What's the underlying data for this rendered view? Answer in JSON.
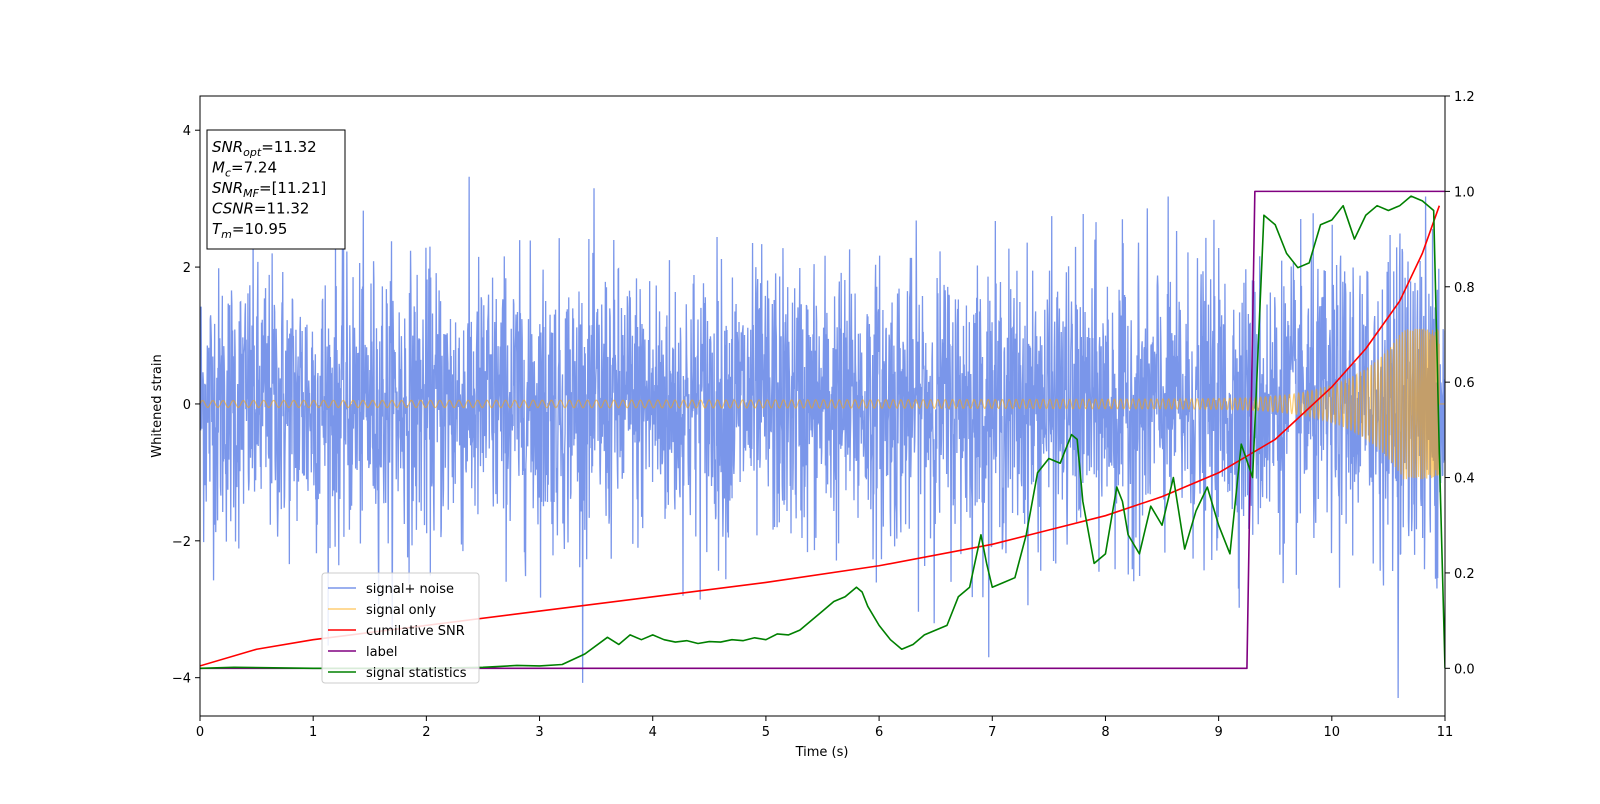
{
  "chart_data": {
    "type": "line",
    "title": "",
    "xlabel": "Time (s)",
    "ylabel": "Whitened strain",
    "xlim": [
      0,
      11
    ],
    "ylim_left": [
      -4.56,
      4.5
    ],
    "ylim_right": [
      -0.1,
      1.2
    ],
    "grid": false,
    "legend_position": "lower-left",
    "x_ticks": [
      "0",
      "1",
      "2",
      "3",
      "4",
      "5",
      "6",
      "7",
      "8",
      "9",
      "10",
      "11"
    ],
    "y_ticks_left": [
      "−4",
      "−2",
      "0",
      "2",
      "4"
    ],
    "y_ticks_right": [
      "0.0",
      "0.2",
      "0.4",
      "0.6",
      "0.8",
      "1.0",
      "1.2"
    ],
    "annotation": {
      "lines": [
        {
          "sym": "SNR",
          "sub": "opt",
          "val": "=11.32"
        },
        {
          "sym": "M",
          "sub": "c",
          "val": "=7.24"
        },
        {
          "sym": "SNR",
          "sub": "MF",
          "val": "=[11.21]"
        },
        {
          "sym": "CSNR",
          "sub": "",
          "val": "=11.32"
        },
        {
          "sym": "T",
          "sub": "m",
          "val": "=10.95"
        }
      ]
    },
    "series": [
      {
        "name": "signal+ noise",
        "color": "#4169e1",
        "axis": "left",
        "noise_sigma": 1.0,
        "noise_peak": 4.1
      },
      {
        "name": "signal only",
        "color": "#ffa500",
        "axis": "left",
        "chirp_amp_start": 0.05,
        "chirp_amp_end": 1.1,
        "merger_time": 10.95
      },
      {
        "name": "cumilative SNR",
        "color": "#ff0000",
        "axis": "right",
        "x": [
          0,
          0.5,
          1,
          2,
          3,
          4,
          5,
          6,
          7,
          7.5,
          8,
          8.5,
          9,
          9.5,
          10,
          10.3,
          10.6,
          10.8,
          10.95
        ],
        "y": [
          0.005,
          0.04,
          0.06,
          0.09,
          0.12,
          0.15,
          0.18,
          0.215,
          0.26,
          0.29,
          0.32,
          0.36,
          0.41,
          0.48,
          0.59,
          0.67,
          0.77,
          0.87,
          0.97
        ]
      },
      {
        "name": "label",
        "color": "#800080",
        "axis": "right",
        "x": [
          0,
          9.25,
          9.32,
          11.0
        ],
        "y": [
          0,
          0,
          1,
          1
        ]
      },
      {
        "name": "signal statistics",
        "color": "#008000",
        "axis": "right",
        "x": [
          0,
          0.3,
          1,
          2,
          2.5,
          2.8,
          3.0,
          3.2,
          3.4,
          3.6,
          3.7,
          3.8,
          3.9,
          4.0,
          4.1,
          4.2,
          4.3,
          4.4,
          4.5,
          4.6,
          4.7,
          4.8,
          4.9,
          5.0,
          5.1,
          5.2,
          5.3,
          5.4,
          5.5,
          5.6,
          5.7,
          5.8,
          5.85,
          5.9,
          6.0,
          6.1,
          6.2,
          6.3,
          6.4,
          6.5,
          6.6,
          6.7,
          6.8,
          6.9,
          6.95,
          7.0,
          7.1,
          7.2,
          7.3,
          7.4,
          7.5,
          7.6,
          7.7,
          7.75,
          7.8,
          7.9,
          8.0,
          8.1,
          8.15,
          8.2,
          8.3,
          8.4,
          8.5,
          8.6,
          8.7,
          8.8,
          8.9,
          9.0,
          9.1,
          9.2,
          9.3,
          9.4,
          9.5,
          9.6,
          9.7,
          9.8,
          9.9,
          10.0,
          10.1,
          10.2,
          10.3,
          10.4,
          10.5,
          10.6,
          10.7,
          10.8,
          10.9,
          10.95,
          11.0
        ],
        "y": [
          0,
          0.002,
          0,
          0,
          0.002,
          0.006,
          0.005,
          0.008,
          0.03,
          0.065,
          0.05,
          0.07,
          0.06,
          0.07,
          0.06,
          0.055,
          0.058,
          0.052,
          0.056,
          0.055,
          0.06,
          0.058,
          0.064,
          0.06,
          0.072,
          0.07,
          0.08,
          0.1,
          0.12,
          0.14,
          0.15,
          0.17,
          0.16,
          0.13,
          0.09,
          0.06,
          0.04,
          0.05,
          0.07,
          0.08,
          0.09,
          0.15,
          0.17,
          0.28,
          0.22,
          0.17,
          0.18,
          0.19,
          0.28,
          0.41,
          0.44,
          0.43,
          0.49,
          0.48,
          0.35,
          0.22,
          0.24,
          0.38,
          0.35,
          0.28,
          0.24,
          0.34,
          0.3,
          0.4,
          0.25,
          0.33,
          0.38,
          0.3,
          0.24,
          0.47,
          0.4,
          0.95,
          0.93,
          0.87,
          0.84,
          0.85,
          0.93,
          0.94,
          0.97,
          0.9,
          0.95,
          0.97,
          0.96,
          0.97,
          0.99,
          0.98,
          0.96,
          0.45,
          0.0
        ]
      }
    ]
  }
}
